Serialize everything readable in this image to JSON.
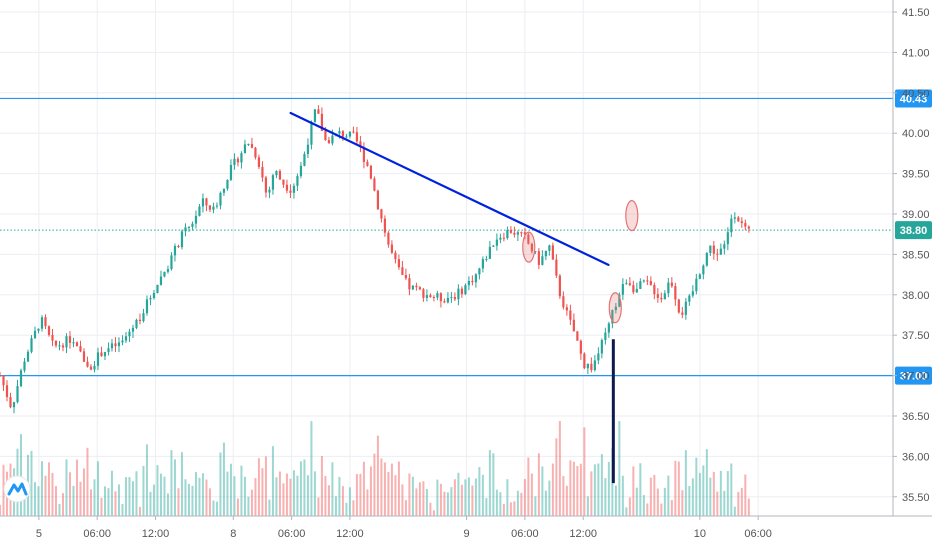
{
  "chart_data": {
    "type": "candlestick",
    "price_axis": {
      "ticks": [
        "41.50",
        "41.00",
        "40.50",
        "40.00",
        "39.50",
        "39.00",
        "38.50",
        "38.00",
        "37.50",
        "37.00",
        "36.50",
        "36.00",
        "35.50"
      ],
      "range": [
        35.2,
        41.65
      ]
    },
    "time_axis": {
      "ticks": [
        {
          "label": "5",
          "t": 4.0
        },
        {
          "label": "06:00",
          "t": 10.0
        },
        {
          "label": "12:00",
          "t": 16.0
        },
        {
          "label": "8",
          "t": 24.0
        },
        {
          "label": "06:00",
          "t": 30.0
        },
        {
          "label": "12:00",
          "t": 36.0
        },
        {
          "label": "9",
          "t": 48.0
        },
        {
          "label": "06:00",
          "t": 54.0
        },
        {
          "label": "12:00",
          "t": 60.0
        },
        {
          "label": "10",
          "t": 72.0
        },
        {
          "label": "06:00",
          "t": 78.0
        }
      ]
    },
    "price_levels": [
      {
        "value": 40.43,
        "label": "40.43",
        "color": "#2196f3",
        "style": "solid"
      },
      {
        "value": 38.8,
        "label": "38.80",
        "color": "#26a69a",
        "style": "dotted"
      },
      {
        "value": 37.0,
        "label": "37.00",
        "color": "#2196f3",
        "style": "solid"
      }
    ],
    "trendline": {
      "from": {
        "t": 29.9,
        "price": 40.25
      },
      "to": {
        "t": 62.6,
        "price": 38.37
      },
      "color": "#0022dd"
    },
    "marked_bar": {
      "t": 63.1,
      "from_price": 37.45,
      "to_price": 35.67,
      "color": "#0d1a4d"
    },
    "circles": [
      {
        "t": 54.4,
        "price": 38.59,
        "color": "#e57373"
      },
      {
        "t": 63.3,
        "price": 37.84,
        "color": "#e57373"
      },
      {
        "t": 65.0,
        "price": 38.98,
        "color": "#e57373"
      }
    ],
    "colors": {
      "up": "#26a69a",
      "down": "#ef5350",
      "grid": "#eceef2",
      "axis_text": "#555555"
    },
    "watermark_icon": "tradingview-logo-icon"
  }
}
